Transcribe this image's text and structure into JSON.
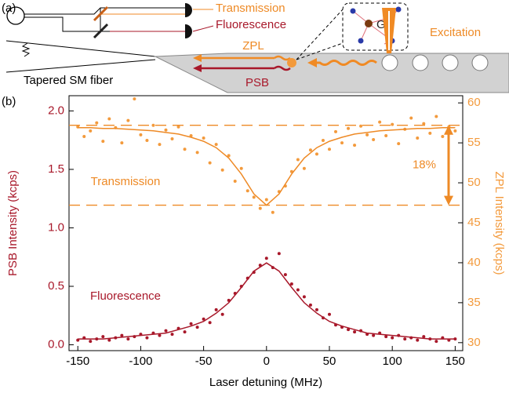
{
  "diagram": {
    "panel_label": "(a)",
    "transmission_label": "Transmission",
    "fluorescence_label": "Fluorescence",
    "zpl_label": "ZPL",
    "psb_label": "PSB",
    "atom_label": "Ge",
    "excitation_label": "Excitation",
    "fiber_label": "Tapered SM fiber"
  },
  "chart_data": {
    "type": "scatter",
    "panel_label": "(b)",
    "x_label": "Laser detuning (MHz)",
    "y_label": "PSB Intensity (kcps)",
    "y2_label": "ZPL Intensity (kcps)",
    "xlim": [
      -157,
      156
    ],
    "xticks": [
      -150,
      -100,
      -50,
      0,
      50,
      100,
      150
    ],
    "ylim": [
      -0.05,
      2.13
    ],
    "yticks": [
      {
        "value": 0,
        "label": "0.0"
      },
      {
        "value": 0.5,
        "label": "0.5"
      },
      {
        "value": 1,
        "label": "1.0"
      },
      {
        "value": 1.5,
        "label": "1.5"
      },
      {
        "value": 2,
        "label": "2.0"
      }
    ],
    "y2lim": [
      29.0,
      60.9
    ],
    "y2ticks": [
      30,
      35,
      40,
      45,
      50,
      55,
      60
    ],
    "series": [
      {
        "name": "Transmission",
        "color": "#f39a3c",
        "axis": "y2",
        "x": [
          -150,
          -145,
          -140,
          -135,
          -130,
          -125,
          -120,
          -115,
          -110,
          -105,
          -100,
          -95,
          -90,
          -85,
          -80,
          -75,
          -70,
          -65,
          -60,
          -55,
          -50,
          -45,
          -40,
          -35,
          -30,
          -25,
          -20,
          -15,
          -10,
          -5,
          0,
          5,
          10,
          15,
          20,
          25,
          30,
          35,
          40,
          45,
          50,
          55,
          60,
          65,
          70,
          75,
          80,
          85,
          90,
          95,
          100,
          105,
          110,
          115,
          120,
          125,
          130,
          135,
          140,
          145,
          150
        ],
        "values": [
          57.0,
          55.8,
          56.5,
          57.5,
          55.2,
          58.0,
          56.9,
          55.0,
          57.8,
          60.5,
          56.0,
          55.3,
          57.2,
          54.8,
          56.6,
          55.5,
          57.0,
          54.2,
          55.9,
          53.8,
          55.6,
          52.5,
          54.8,
          51.6,
          53.4,
          50.2,
          51.8,
          49.0,
          48.2,
          46.8,
          47.9,
          46.3,
          48.9,
          49.6,
          51.4,
          52.9,
          51.8,
          54.1,
          53.6,
          55.3,
          54.2,
          56.4,
          55.0,
          56.8,
          54.7,
          57.1,
          56.0,
          55.4,
          57.6,
          55.9,
          57.3,
          54.9,
          56.7,
          58.1,
          55.6,
          57.4,
          56.2,
          58.3,
          55.8,
          57.0,
          56.5
        ],
        "fit": {
          "color": "#ee8a26",
          "x": [
            -150,
            -140,
            -130,
            -120,
            -110,
            -100,
            -90,
            -80,
            -70,
            -60,
            -50,
            -40,
            -30,
            -20,
            -10,
            0,
            10,
            20,
            30,
            40,
            50,
            60,
            70,
            80,
            90,
            100,
            110,
            120,
            130,
            140,
            150
          ],
          "values": [
            56.9,
            56.9,
            56.8,
            56.8,
            56.7,
            56.6,
            56.5,
            56.3,
            56.1,
            55.7,
            55.2,
            54.4,
            53.1,
            51.1,
            48.6,
            47.2,
            48.6,
            51.1,
            53.1,
            54.4,
            55.2,
            55.7,
            56.1,
            56.3,
            56.5,
            56.6,
            56.7,
            56.8,
            56.8,
            56.9,
            56.9
          ]
        }
      },
      {
        "name": "Fluorescence",
        "color": "#a8182a",
        "axis": "y",
        "x": [
          -150,
          -145,
          -140,
          -135,
          -130,
          -125,
          -120,
          -115,
          -110,
          -105,
          -100,
          -95,
          -90,
          -85,
          -80,
          -75,
          -70,
          -65,
          -60,
          -55,
          -50,
          -45,
          -40,
          -35,
          -30,
          -25,
          -20,
          -15,
          -10,
          -5,
          0,
          5,
          10,
          15,
          20,
          25,
          30,
          35,
          40,
          45,
          50,
          55,
          60,
          65,
          70,
          75,
          80,
          85,
          90,
          95,
          100,
          105,
          110,
          115,
          120,
          125,
          130,
          135,
          140,
          145,
          150
        ],
        "values": [
          0.04,
          0.06,
          0.03,
          0.05,
          0.07,
          0.04,
          0.06,
          0.08,
          0.05,
          0.07,
          0.09,
          0.06,
          0.1,
          0.08,
          0.12,
          0.09,
          0.14,
          0.11,
          0.18,
          0.15,
          0.22,
          0.19,
          0.3,
          0.26,
          0.38,
          0.44,
          0.5,
          0.57,
          0.62,
          0.68,
          0.74,
          0.66,
          0.78,
          0.6,
          0.52,
          0.47,
          0.41,
          0.34,
          0.3,
          0.23,
          0.26,
          0.17,
          0.15,
          0.13,
          0.11,
          0.12,
          0.09,
          0.08,
          0.1,
          0.07,
          0.06,
          0.08,
          0.05,
          0.06,
          0.04,
          0.07,
          0.05,
          0.03,
          0.06,
          0.04,
          0.05
        ],
        "fit": {
          "color": "#a8182a",
          "x": [
            -150,
            -140,
            -130,
            -120,
            -110,
            -100,
            -90,
            -80,
            -70,
            -60,
            -50,
            -40,
            -30,
            -20,
            -10,
            0,
            10,
            20,
            30,
            40,
            50,
            60,
            70,
            80,
            90,
            100,
            110,
            120,
            130,
            140,
            150
          ],
          "values": [
            0.05,
            0.05,
            0.05,
            0.06,
            0.07,
            0.08,
            0.09,
            0.1,
            0.13,
            0.16,
            0.2,
            0.27,
            0.36,
            0.49,
            0.63,
            0.7,
            0.63,
            0.49,
            0.36,
            0.27,
            0.2,
            0.16,
            0.13,
            0.1,
            0.09,
            0.08,
            0.07,
            0.06,
            0.05,
            0.05,
            0.05
          ]
        }
      }
    ],
    "reference_lines": {
      "axis": "y2",
      "values": [
        57.2,
        47.2
      ],
      "color": "#ee8a26"
    },
    "annotation": "18%"
  }
}
